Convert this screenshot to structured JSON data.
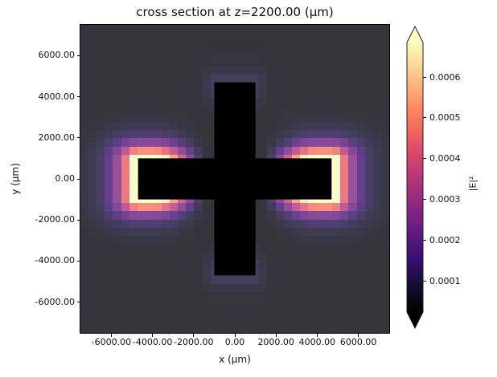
{
  "chart_data": {
    "type": "heatmap",
    "title": "cross section at z=2200.00 (μm)",
    "z_slice_um": 2200.0,
    "xlabel": "x (μm)",
    "ylabel": "y (μm)",
    "xlim": [
      -7500,
      7500
    ],
    "ylim": [
      -7500,
      7500
    ],
    "grid": "off",
    "x_tick_values": [
      -6000,
      -4000,
      -2000,
      0,
      2000,
      4000,
      6000
    ],
    "x_tick_labels": [
      "-6000.00",
      "-4000.00",
      "-2000.00",
      "0.00",
      "2000.00",
      "4000.00",
      "6000.00"
    ],
    "y_tick_values": [
      6000,
      4000,
      2000,
      0,
      -2000,
      -4000,
      -6000
    ],
    "y_tick_labels": [
      "6000.00",
      "4000.00",
      "2000.00",
      "0.00",
      "-2000.00",
      "-4000.00",
      "-6000.00"
    ],
    "colorbar": {
      "label": "|E|²",
      "cmap": "magma",
      "extend": "both",
      "position": "right",
      "vmin": 2.35e-05,
      "vmax": 0.000685,
      "tick_values": [
        0.0006,
        0.0005,
        0.0004,
        0.0003,
        0.0002,
        0.0001
      ],
      "tick_labels": [
        "0.0006",
        "0.0005",
        "0.0004",
        "0.0003",
        "0.0002",
        "0.0001"
      ]
    },
    "colormap_stops": [
      [
        0.0,
        "#000004"
      ],
      [
        0.1,
        "#140e36"
      ],
      [
        0.2,
        "#3b0f70"
      ],
      [
        0.3,
        "#641a80"
      ],
      [
        0.4,
        "#8c2981"
      ],
      [
        0.5,
        "#b73779"
      ],
      [
        0.6,
        "#de4968"
      ],
      [
        0.7,
        "#f7705c"
      ],
      [
        0.8,
        "#fe9f6d"
      ],
      [
        0.9,
        "#fecf92"
      ],
      [
        1.0,
        "#fcfdbf"
      ]
    ],
    "structure": {
      "shape": "cross",
      "fill": "#000000",
      "arm_half_length_um": 4700,
      "arm_half_width_um": 1000,
      "horizontal_arm": {
        "x": [
          -4700,
          4700
        ],
        "y": [
          -1000,
          1000
        ]
      },
      "vertical_arm": {
        "x": [
          -1000,
          1000
        ],
        "y": [
          -4700,
          4700
        ]
      }
    },
    "field_model": {
      "description": "|E|^2 hotspots hug the left and right ends of the horizontal arm (bright cream ring at the boundary fading through orange, magenta and purple into the dark background); only a very faint glow at the vertical arm tips",
      "background_value": 3e-05,
      "grid_cells": 38,
      "field_alpha_over_white": 0.8,
      "horizontal_arm_glow": {
        "peak": 0.00073,
        "plateau_um": 230,
        "decay_um": 700,
        "y_anisotropy": 1.45,
        "envelope_start_um": 1200,
        "envelope_width_um": 2800
      },
      "vertical_arm_glow": {
        "peak": 6e-05,
        "plateau_um": 200,
        "decay_um": 450,
        "x_anisotropy": 1.45,
        "envelope_start_um": 2800,
        "envelope_width_um": 1700
      }
    }
  }
}
